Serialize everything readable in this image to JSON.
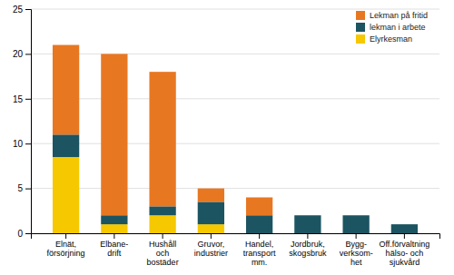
{
  "chart_data": {
    "type": "bar",
    "stacked": true,
    "categories": [
      "Elnät,\nförsörjning",
      "Elbane-\ndrift",
      "Hushåll\noch\nbostäder",
      "Gruvor,\nindustrier",
      "Handel,\ntransport\nmm.",
      "Jordbruk,\nskogsbruk",
      "Bygg-\nverksom-\nhet",
      "Off.förvaltning\nhälso- och\nsjukvård"
    ],
    "series": [
      {
        "name": "Elyrkesman",
        "color": "#F5C800",
        "values": [
          8.5,
          1.0,
          2.0,
          1.0,
          0.0,
          0.0,
          0.0,
          0.0
        ]
      },
      {
        "name": "lekman i arbete",
        "color": "#1C5461",
        "values": [
          2.5,
          1.0,
          1.0,
          2.5,
          2.0,
          2.0,
          2.0,
          1.0
        ]
      },
      {
        "name": "Lekman på fritid",
        "color": "#E87722",
        "values": [
          10.0,
          18.0,
          15.0,
          1.5,
          2.0,
          0.0,
          0.0,
          0.0
        ]
      }
    ],
    "ylim": [
      0,
      25
    ],
    "yticks": [
      0,
      5,
      10,
      15,
      20,
      25
    ],
    "grid": true,
    "legend": "top-right"
  }
}
